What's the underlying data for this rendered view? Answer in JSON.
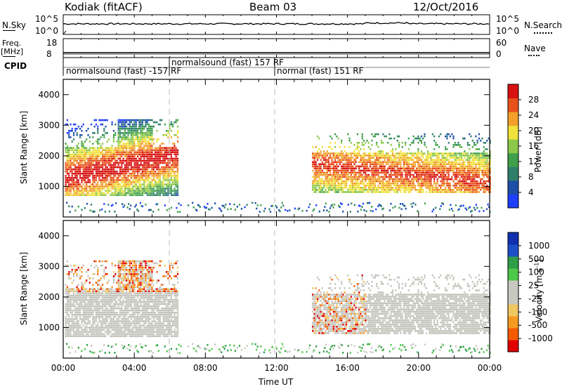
{
  "header": {
    "station": "Kodiak (fitACF)",
    "beam": "Beam 03",
    "date": "12/Oct/2016"
  },
  "top_panels": {
    "nsky_label": "N.Sky",
    "nsky_ticks": [
      "10^5",
      "10^0"
    ],
    "nsearch_label": "N.Search",
    "nsearch_ticks": [
      "10^5",
      "10^0"
    ],
    "freq_label": "Freq.",
    "freq_unit": "[MHz]",
    "freq_ticks": [
      "18",
      "8"
    ],
    "nave_label": "Nave",
    "nave_ticks": [
      "60",
      "0"
    ],
    "cpid_label": "CPID",
    "cpid_segments": [
      {
        "text": "normalsound (fast) -157 RF",
        "start_hour": 0.0
      },
      {
        "text": "normalsound (fast) 157 RF",
        "start_hour": 6.0
      },
      {
        "text": "normal (fast) 151 RF",
        "start_hour": 12.0
      }
    ]
  },
  "colors": {
    "power": [
      "#1f3fff",
      "#1d4fa8",
      "#2e7f6a",
      "#3fa04a",
      "#8cc84a",
      "#f0e23a",
      "#f2a02a",
      "#e8521a",
      "#d71010"
    ],
    "velocity": [
      "#e00000",
      "#f55a00",
      "#f59a20",
      "#f0c860",
      "#c8c8c0",
      "#c8c8c0",
      "#4ec84a",
      "#2f9e4a",
      "#1d4fc8",
      "#1030b0"
    ],
    "power_core": "#e8521a",
    "vel_gray": "#c4c4bc"
  },
  "chart_data": [
    {
      "type": "heatmap",
      "title": "Power",
      "xlabel": "Time UT",
      "ylabel": "Slant Range [km]",
      "colorbar_label": "Power [dB]",
      "colorbar_ticks": [
        "28",
        "24",
        "20",
        "16",
        "12",
        "8",
        "4"
      ],
      "y_ticks": [
        "4000",
        "3000",
        "2000",
        "1000"
      ],
      "x_ticks": [
        "00:00",
        "04:00",
        "08:00",
        "12:00",
        "16:00",
        "20:00",
        "00:00"
      ],
      "xlim": [
        0,
        24
      ],
      "ylim": [
        0,
        4500
      ]
    },
    {
      "type": "heatmap",
      "title": "Velocity",
      "xlabel": "Time UT",
      "ylabel": "Slant Range [km]",
      "colorbar_label": "Velocity [m s^-1]",
      "colorbar_ticks": [
        "1000",
        "500",
        "100",
        "25",
        "-25",
        "-100",
        "-500",
        "-1000"
      ],
      "y_ticks": [
        "4000",
        "3000",
        "2000",
        "1000"
      ],
      "x_ticks": [
        "00:00",
        "04:00",
        "08:00",
        "12:00",
        "16:00",
        "20:00",
        "00:00"
      ],
      "xlim": [
        0,
        24
      ],
      "ylim": [
        0,
        4500
      ]
    }
  ],
  "xaxis_title": "Time UT"
}
